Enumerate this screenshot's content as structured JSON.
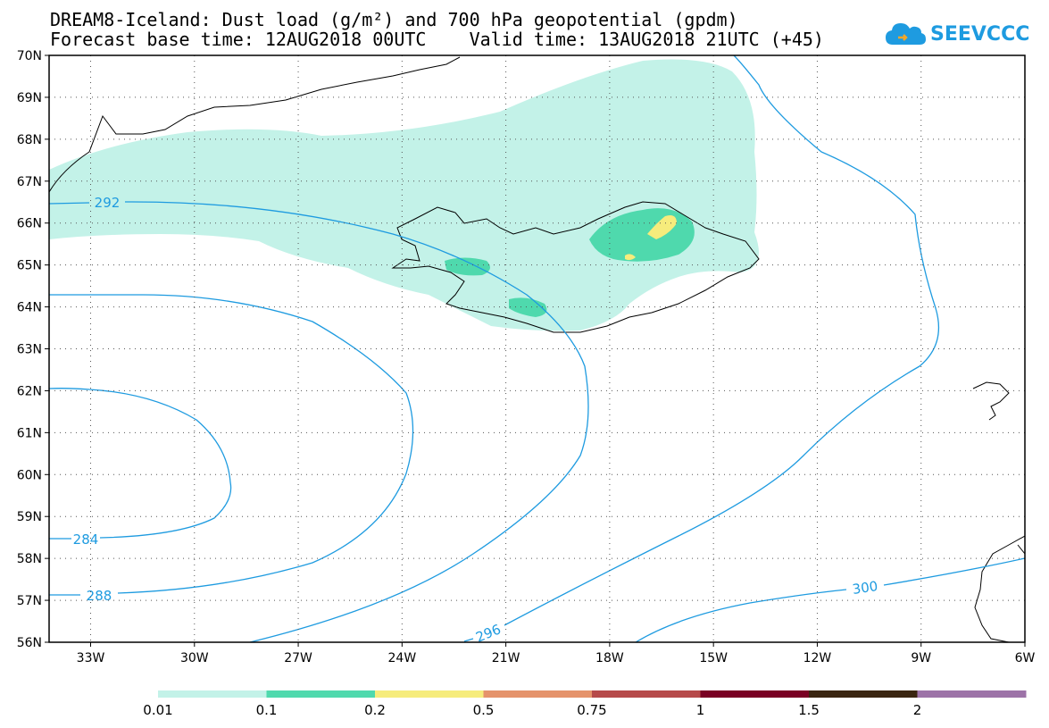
{
  "title": {
    "line1": "DREAM8-Iceland: Dust load (g/m²) and 700 hPa geopotential (gpdm)",
    "line2": "Forecast base time: 12AUG2018 00UTC    Valid time: 13AUG2018 21UTC (+45)"
  },
  "logo": {
    "text": "SEEVCCC",
    "icon": "cloud-icon"
  },
  "map": {
    "lat_labels": [
      "70N",
      "69N",
      "68N",
      "67N",
      "66N",
      "65N",
      "64N",
      "63N",
      "62N",
      "61N",
      "60N",
      "59N",
      "58N",
      "57N",
      "56N"
    ],
    "lon_labels": [
      "33W",
      "30W",
      "27W",
      "24W",
      "21W",
      "18W",
      "15W",
      "12W",
      "9W",
      "6W"
    ],
    "lat_range": [
      56,
      70
    ],
    "lon_range": [
      -34.2,
      -6
    ],
    "gridlines": "dotted",
    "contour_labels": [
      "292",
      "284",
      "288",
      "296",
      "300"
    ]
  },
  "colorbar": {
    "labels": [
      "0.01",
      "0.1",
      "0.2",
      "0.5",
      "0.75",
      "1",
      "1.5",
      "2"
    ],
    "colors": [
      "#c3f2e8",
      "#4fd9ad",
      "#f6ec7c",
      "#e5936b",
      "#b64a4a",
      "#7a0023",
      "#3a2510",
      "#9d73a8"
    ]
  },
  "colors": {
    "contour": "#1e9be0",
    "coast": "#000000",
    "dust_low": "#c3f2e8",
    "dust_mid": "#4fd9ad",
    "dust_high": "#f6ec7c"
  }
}
